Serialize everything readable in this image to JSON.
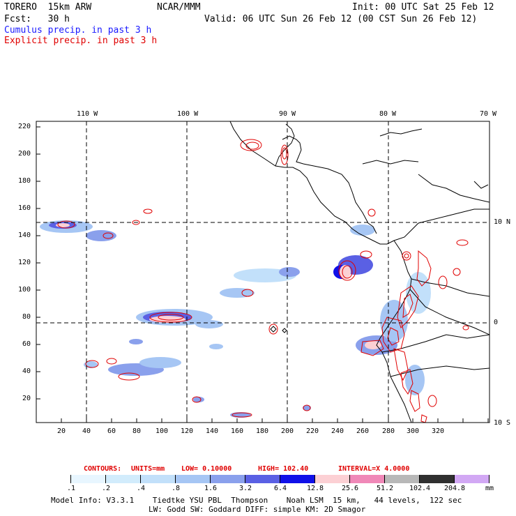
{
  "header": {
    "model": "TORERO  15km ARW",
    "center": "NCAR/MMM",
    "init": "Init: 00 UTC Sat 25 Feb 12",
    "fcst": "Fcst:   30 h",
    "valid": "Valid: 06 UTC Sun 26 Feb 12 (00 CST Sun 26 Feb 12)",
    "legend_cumulus": "Cumulus precip. in past 3 h",
    "legend_explicit": "Explicit precip. in past 3 h"
  },
  "map": {
    "lon_labels": [
      "110 W",
      "100 W",
      "90 W",
      "80 W",
      "70 W"
    ],
    "lat_labels": [
      "10 N",
      "0",
      "10 S"
    ],
    "y_ticks": [
      "220",
      "200",
      "180",
      "160",
      "140",
      "120",
      "100",
      "80",
      "60",
      "40",
      "20"
    ],
    "x_ticks": [
      "20",
      "40",
      "60",
      "80",
      "100",
      "120",
      "140",
      "160",
      "180",
      "200",
      "220",
      "240",
      "260",
      "280",
      "300",
      "320"
    ]
  },
  "contours": {
    "label": "CONTOURS:",
    "units": "UNITS=mm",
    "low": "LOW= 0.10000",
    "high": "HIGH= 102.40",
    "interval": "INTERVAL=X 4.0000"
  },
  "colorbar": {
    "labels": [
      ".1",
      ".2",
      ".4",
      ".8",
      "1.6",
      "3.2",
      "6.4",
      "12.8",
      "25.6",
      "51.2",
      "102.4",
      "204.8"
    ],
    "unit": "mm",
    "colors": [
      "#ffffff",
      "#e8f6ff",
      "#d2ecfc",
      "#c2e0fa",
      "#a6c6f4",
      "#8aa0ec",
      "#5a60e4",
      "#1010e8",
      "#fcd0d4",
      "#f088b8",
      "#b8b8b8",
      "#303030",
      "#d2a8f4"
    ]
  },
  "footer": {
    "line1": "Model Info: V3.3.1    Tiedtke YSU PBL  Thompson    Noah LSM  15 km,   44 levels,  122 sec",
    "line2": "LW: Godd SW: Goddard DIFF: simple KM: 2D Smagor"
  }
}
